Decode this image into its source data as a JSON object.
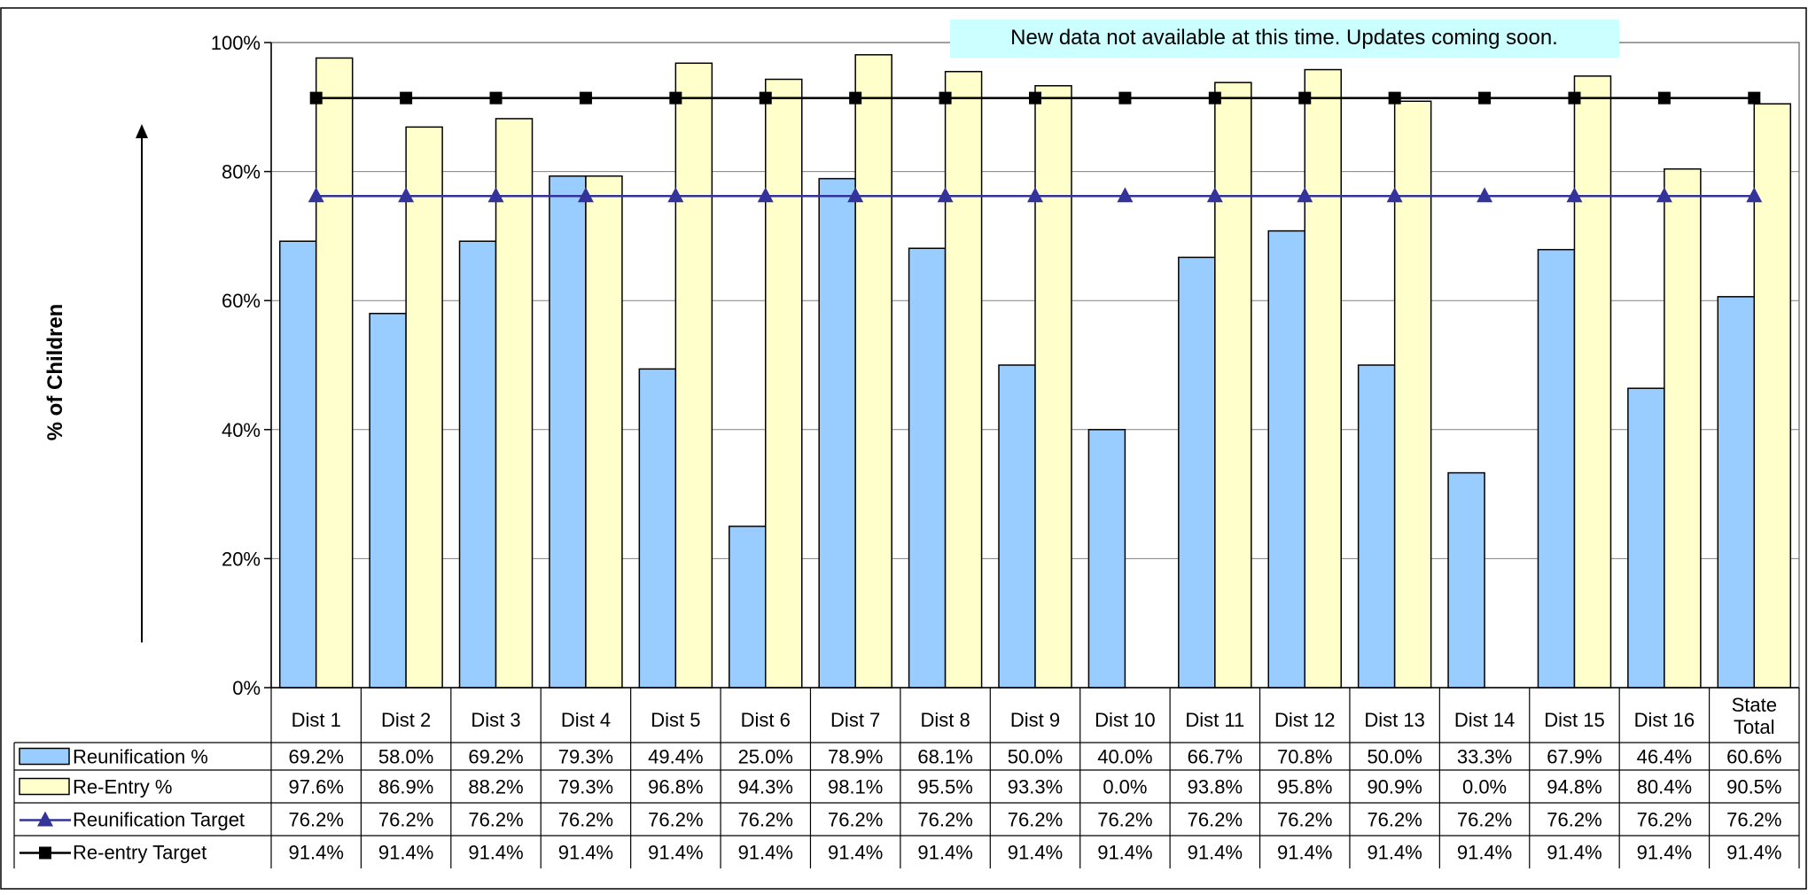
{
  "banner": "New data not available at this time. Updates coming soon.",
  "chart_data": {
    "type": "bar",
    "title": "",
    "ylabel": "% of Children",
    "ylim": [
      0,
      100
    ],
    "y_ticks": [
      "0%",
      "20%",
      "40%",
      "60%",
      "80%",
      "100%"
    ],
    "grid": true,
    "categories": [
      "Dist 1",
      "Dist 2",
      "Dist 3",
      "Dist 4",
      "Dist 5",
      "Dist 6",
      "Dist 7",
      "Dist 8",
      "Dist 9",
      "Dist 10",
      "Dist 11",
      "Dist 12",
      "Dist 13",
      "Dist 14",
      "Dist 15",
      "Dist 16",
      "State\nTotal"
    ],
    "series": [
      {
        "name": "Reunification %",
        "kind": "bar",
        "color": "#99CCFF",
        "values": [
          69.2,
          58.0,
          69.2,
          79.3,
          49.4,
          25.0,
          78.9,
          68.1,
          50.0,
          40.0,
          66.7,
          70.8,
          50.0,
          33.3,
          67.9,
          46.4,
          60.6
        ],
        "labels": [
          "69.2%",
          "58.0%",
          "69.2%",
          "79.3%",
          "49.4%",
          "25.0%",
          "78.9%",
          "68.1%",
          "50.0%",
          "40.0%",
          "66.7%",
          "70.8%",
          "50.0%",
          "33.3%",
          "67.9%",
          "46.4%",
          "60.6%"
        ]
      },
      {
        "name": "Re-Entry %",
        "kind": "bar",
        "color": "#FFFFCC",
        "values": [
          97.6,
          86.9,
          88.2,
          79.3,
          96.8,
          94.3,
          98.1,
          95.5,
          93.3,
          0.0,
          93.8,
          95.8,
          90.9,
          0.0,
          94.8,
          80.4,
          90.5
        ],
        "labels": [
          "97.6%",
          "86.9%",
          "88.2%",
          "79.3%",
          "96.8%",
          "94.3%",
          "98.1%",
          "95.5%",
          "93.3%",
          "0.0%",
          "93.8%",
          "95.8%",
          "90.9%",
          "0.0%",
          "94.8%",
          "80.4%",
          "90.5%"
        ]
      },
      {
        "name": "Reunification Target",
        "kind": "line",
        "marker": "triangle",
        "color": "#333399",
        "values": [
          76.2,
          76.2,
          76.2,
          76.2,
          76.2,
          76.2,
          76.2,
          76.2,
          76.2,
          76.2,
          76.2,
          76.2,
          76.2,
          76.2,
          76.2,
          76.2,
          76.2
        ],
        "labels": [
          "76.2%",
          "76.2%",
          "76.2%",
          "76.2%",
          "76.2%",
          "76.2%",
          "76.2%",
          "76.2%",
          "76.2%",
          "76.2%",
          "76.2%",
          "76.2%",
          "76.2%",
          "76.2%",
          "76.2%",
          "76.2%",
          "76.2%"
        ]
      },
      {
        "name": "Re-entry Target",
        "kind": "line",
        "marker": "square",
        "color": "#000000",
        "values": [
          91.4,
          91.4,
          91.4,
          91.4,
          91.4,
          91.4,
          91.4,
          91.4,
          91.4,
          91.4,
          91.4,
          91.4,
          91.4,
          91.4,
          91.4,
          91.4,
          91.4
        ],
        "labels": [
          "91.4%",
          "91.4%",
          "91.4%",
          "91.4%",
          "91.4%",
          "91.4%",
          "91.4%",
          "91.4%",
          "91.4%",
          "91.4%",
          "91.4%",
          "91.4%",
          "91.4%",
          "91.4%",
          "91.4%",
          "91.4%",
          "91.4%"
        ]
      }
    ],
    "legend_placement": "data-table-bottom"
  }
}
